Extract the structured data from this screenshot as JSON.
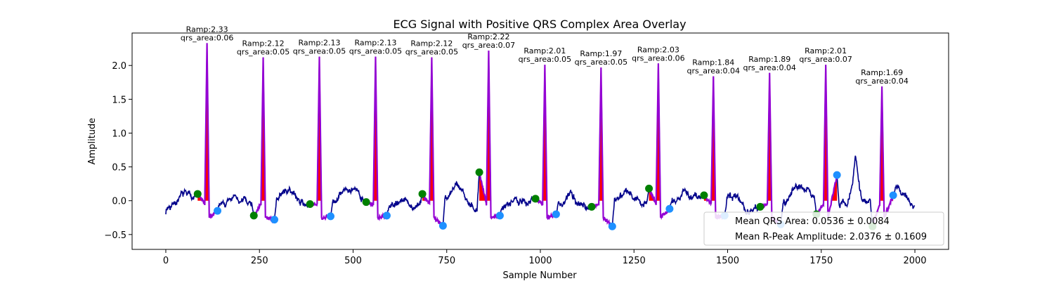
{
  "chart_data": {
    "type": "line",
    "title": "ECG Signal with Positive QRS Complex Area Overlay",
    "xlabel": "Sample Number",
    "ylabel": "Amplitude",
    "xlim": [
      -90,
      2090
    ],
    "ylim": [
      -0.72,
      2.48
    ],
    "xticks": [
      0,
      250,
      500,
      750,
      1000,
      1250,
      1500,
      1750,
      2000
    ],
    "yticks": [
      -0.5,
      0.0,
      0.5,
      1.0,
      1.5,
      2.0
    ],
    "ytick_labels": [
      "−0.5",
      "0.0",
      "0.5",
      "1.0",
      "1.5",
      "2.0"
    ],
    "grid": false,
    "legend_position": "lower-right",
    "colors": {
      "signal": "#00008b",
      "qrs_segment": "#9400d3",
      "qrs_fill": "#ff0000",
      "onset_marker": "#008000",
      "offset_marker": "#1e90ff"
    },
    "beats": [
      {
        "r_x": 110,
        "r_amp": 2.33,
        "qrs_area": 0.06,
        "onset_x": 85,
        "onset_y": 0.1,
        "offset_x": 138,
        "offset_y": -0.15
      },
      {
        "r_x": 260,
        "r_amp": 2.12,
        "qrs_area": 0.05,
        "onset_x": 235,
        "onset_y": -0.22,
        "offset_x": 290,
        "offset_y": -0.28
      },
      {
        "r_x": 410,
        "r_amp": 2.13,
        "qrs_area": 0.05,
        "onset_x": 385,
        "onset_y": -0.05,
        "offset_x": 440,
        "offset_y": -0.23
      },
      {
        "r_x": 560,
        "r_amp": 2.13,
        "qrs_area": 0.05,
        "onset_x": 535,
        "onset_y": -0.02,
        "offset_x": 590,
        "offset_y": -0.22
      },
      {
        "r_x": 710,
        "r_amp": 2.12,
        "qrs_area": 0.05,
        "onset_x": 685,
        "onset_y": 0.1,
        "offset_x": 740,
        "offset_y": -0.37
      },
      {
        "r_x": 862,
        "r_amp": 2.22,
        "qrs_area": 0.07,
        "onset_x": 837,
        "onset_y": 0.42,
        "offset_x": 892,
        "offset_y": -0.22
      },
      {
        "r_x": 1012,
        "r_amp": 2.01,
        "qrs_area": 0.05,
        "onset_x": 987,
        "onset_y": 0.03,
        "offset_x": 1042,
        "offset_y": -0.2
      },
      {
        "r_x": 1162,
        "r_amp": 1.97,
        "qrs_area": 0.05,
        "onset_x": 1137,
        "onset_y": -0.09,
        "offset_x": 1192,
        "offset_y": -0.38
      },
      {
        "r_x": 1315,
        "r_amp": 2.03,
        "qrs_area": 0.06,
        "onset_x": 1290,
        "onset_y": 0.18,
        "offset_x": 1345,
        "offset_y": -0.12
      },
      {
        "r_x": 1462,
        "r_amp": 1.84,
        "qrs_area": 0.04,
        "onset_x": 1437,
        "onset_y": 0.08,
        "offset_x": 1492,
        "offset_y": -0.22
      },
      {
        "r_x": 1612,
        "r_amp": 1.89,
        "qrs_area": 0.04,
        "onset_x": 1587,
        "onset_y": -0.09,
        "offset_x": 1642,
        "offset_y": -0.35
      },
      {
        "r_x": 1762,
        "r_amp": 2.01,
        "qrs_area": 0.07,
        "onset_x": 1737,
        "onset_y": -0.2,
        "offset_x": 1792,
        "offset_y": 0.38
      },
      {
        "r_x": 1912,
        "r_amp": 1.69,
        "qrs_area": 0.04,
        "onset_x": 1887,
        "onset_y": -0.38,
        "offset_x": 1942,
        "offset_y": 0.08
      }
    ],
    "legend": [
      "Mean QRS Area: 0.0536 ± 0.0084",
      "Mean R-Peak Amplitude: 2.0376 ± 0.1609"
    ]
  }
}
